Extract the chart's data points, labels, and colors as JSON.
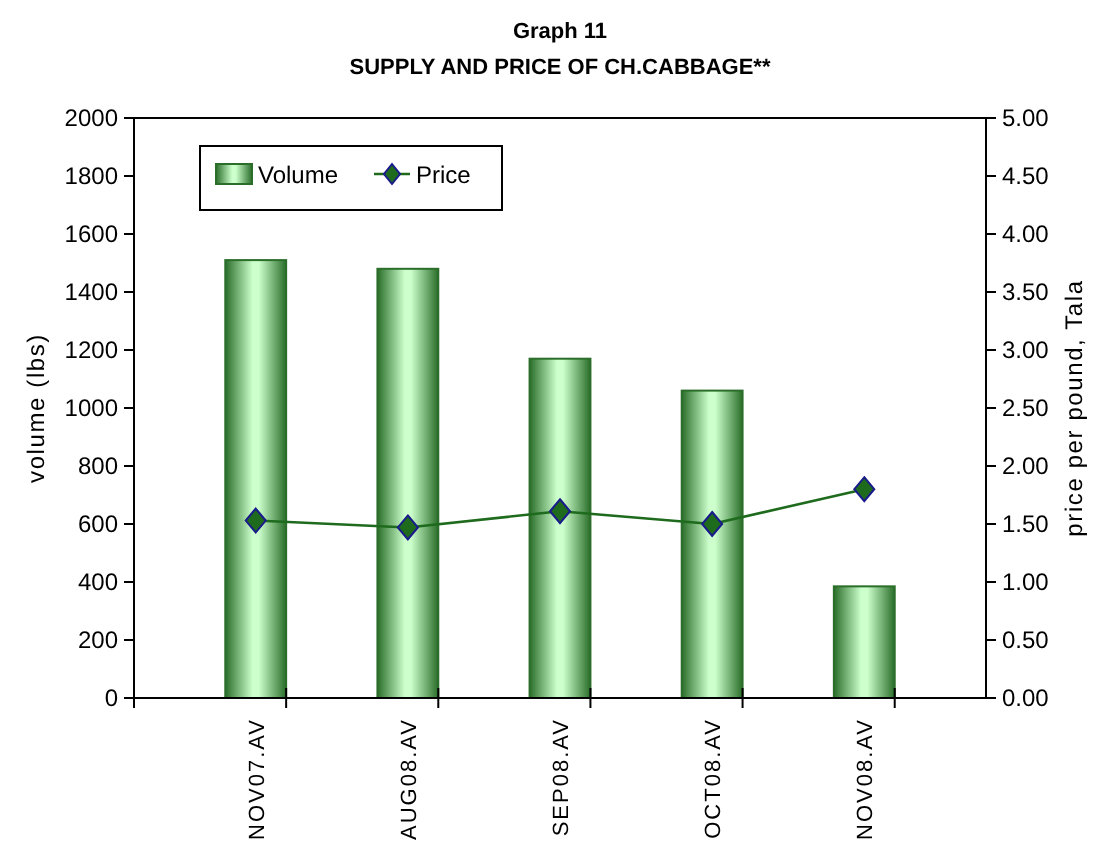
{
  "chart_data": {
    "type": "bar",
    "title": "Graph 11",
    "subtitle": "SUPPLY AND PRICE OF CH.CABBAGE**",
    "ylabel": "volume (lbs)",
    "y2label": "price per pound, Tala",
    "categories": [
      "NOV07.AV",
      "AUG08.AV",
      "SEP08.AV",
      "OCT08.AV",
      "NOV08.AV"
    ],
    "series": [
      {
        "name": "Volume",
        "color": "#2a6e2a",
        "values": [
          1510,
          1480,
          1170,
          1060,
          385
        ]
      },
      {
        "name": "Price",
        "type": "line",
        "axis": "y2",
        "color": "#1e6b1e",
        "marker": "diamond",
        "values": [
          1.53,
          1.47,
          1.61,
          1.5,
          1.8
        ]
      }
    ],
    "ylim": [
      0,
      2000
    ],
    "yticks": [
      0,
      200,
      400,
      600,
      800,
      1000,
      1200,
      1400,
      1600,
      1800,
      2000
    ],
    "y2lim": [
      0,
      5
    ],
    "y2ticks": [
      {
        "value": 0,
        "label": "0.00"
      },
      {
        "value": 0.5,
        "label": "0.50"
      },
      {
        "value": 1,
        "label": "1.00"
      },
      {
        "value": 1.5,
        "label": "1.50"
      },
      {
        "value": 2,
        "label": "2.00"
      },
      {
        "value": 2.5,
        "label": "2.50"
      },
      {
        "value": 3,
        "label": "3.00"
      },
      {
        "value": 3.5,
        "label": "3.50"
      },
      {
        "value": 4,
        "label": "4.00"
      },
      {
        "value": 4.5,
        "label": "4.50"
      },
      {
        "value": 5,
        "label": "5.00"
      }
    ],
    "legend": "top left",
    "grid": false
  }
}
